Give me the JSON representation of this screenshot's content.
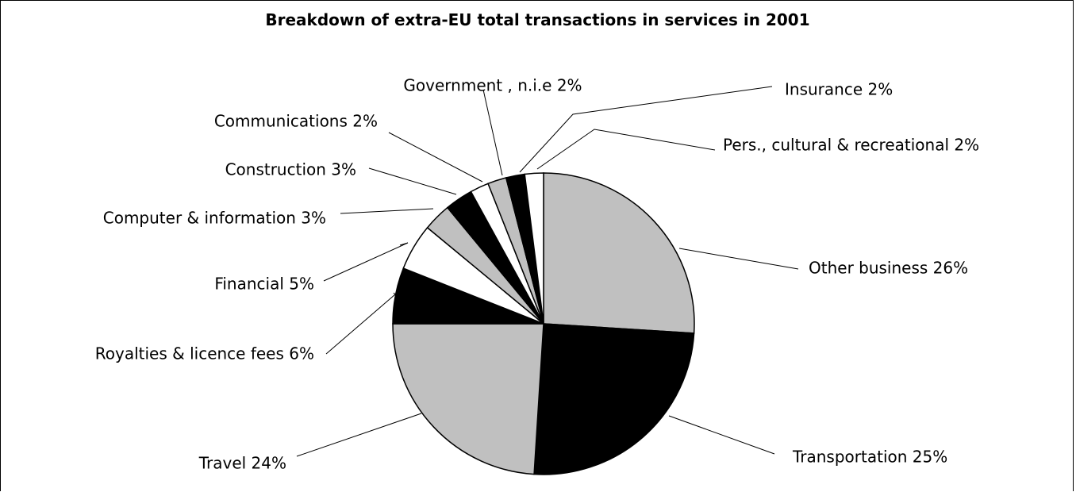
{
  "chart_data": {
    "type": "pie",
    "title": "Breakdown of extra-EU total transactions in services in 2001",
    "slices": [
      {
        "name": "Other business",
        "value": 26,
        "label": "Other business 26%",
        "color": "#c0c0c0"
      },
      {
        "name": "Transportation",
        "value": 25,
        "label": "Transportation 25%",
        "color": "#000000"
      },
      {
        "name": "Travel",
        "value": 24,
        "label": "Travel 24%",
        "color": "#c0c0c0"
      },
      {
        "name": "Royalties & licence fees",
        "value": 6,
        "label": "Royalties & licence fees 6%",
        "color": "#000000"
      },
      {
        "name": "Financial",
        "value": 5,
        "label": "Financial 5%",
        "color": "#ffffff"
      },
      {
        "name": "Computer & information",
        "value": 3,
        "label": "Computer & information 3%",
        "color": "#c0c0c0"
      },
      {
        "name": "Construction",
        "value": 3,
        "label": "Construction 3%",
        "color": "#000000"
      },
      {
        "name": "Communications",
        "value": 2,
        "label": "Communications 2%",
        "color": "#ffffff"
      },
      {
        "name": "Government , n.i.e",
        "value": 2,
        "label": "Government , n.i.e 2%",
        "color": "#c0c0c0"
      },
      {
        "name": "Insurance",
        "value": 2,
        "label": "Insurance 2%",
        "color": "#000000"
      },
      {
        "name": "Pers., cultural & recreational",
        "value": 2,
        "label": "Pers., cultural & recreational 2%",
        "color": "#ffffff"
      }
    ],
    "legend": "none",
    "label_style": "leader-lines"
  }
}
